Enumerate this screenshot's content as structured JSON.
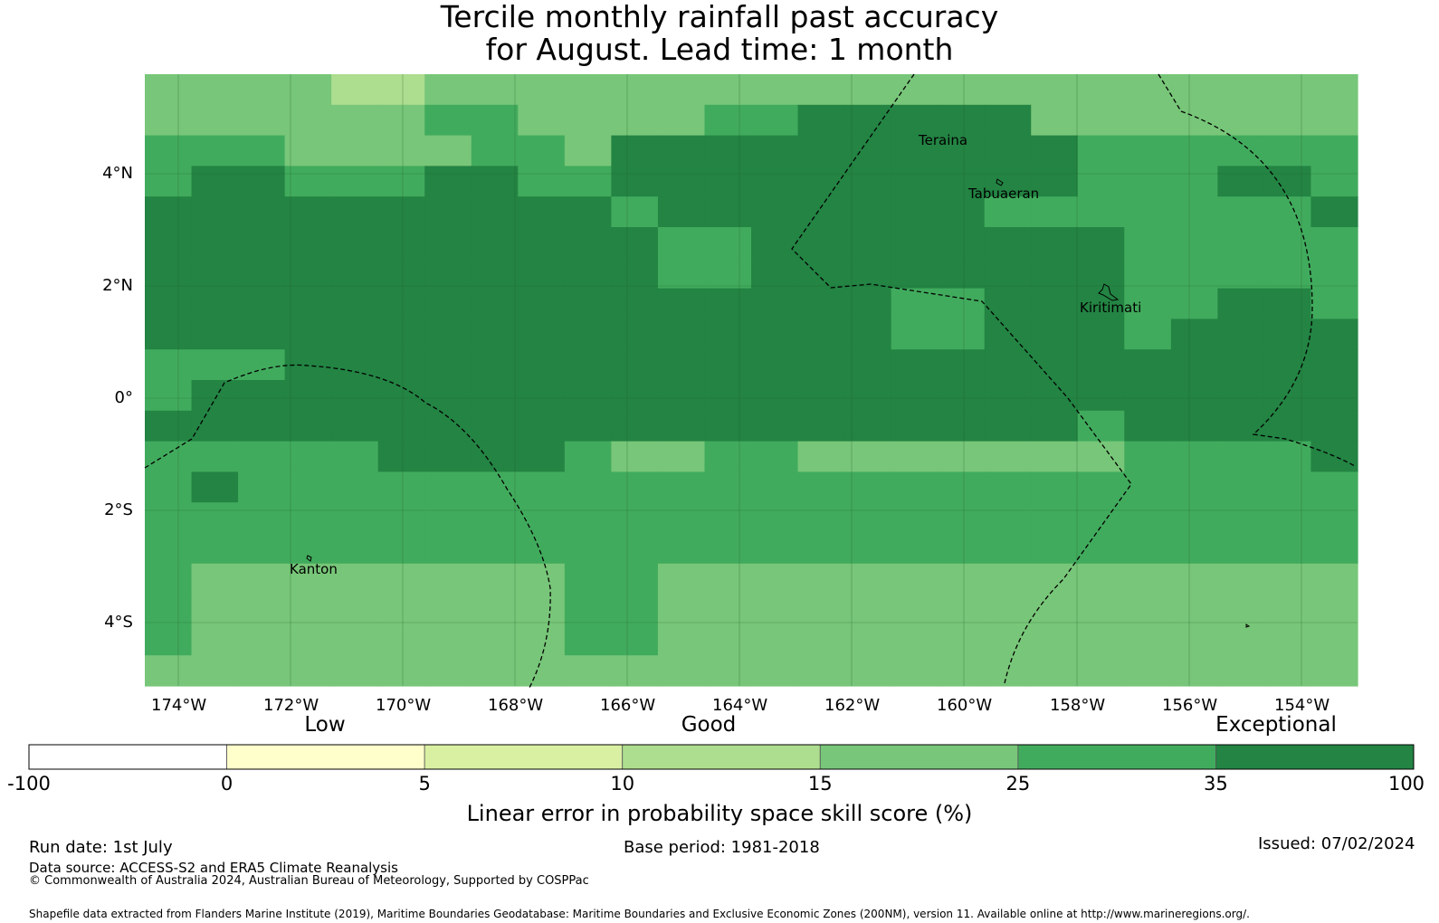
{
  "title_line1": "Tercile monthly rainfall past accuracy",
  "title_line2": "for August. Lead time: 1 month",
  "map": {
    "lon_ticks": [
      "174°W",
      "172°W",
      "170°W",
      "168°W",
      "166°W",
      "164°W",
      "162°W",
      "160°W",
      "158°W",
      "156°W",
      "154°W"
    ],
    "lat_ticks": [
      "4°N",
      "2°N",
      "0°",
      "2°S",
      "4°S"
    ],
    "places": [
      {
        "name": "Teraina"
      },
      {
        "name": "Tabuaeran"
      },
      {
        "name": "Kiritimati"
      },
      {
        "name": "Kanton"
      }
    ],
    "palette": [
      "#ffffff",
      "#ffffcc",
      "#d9f0a3",
      "#addd8e",
      "#78c679",
      "#41ab5d",
      "#238443"
    ],
    "grid": [
      "44443344444444444444444444",
      "44444455444455666664444444",
      "55544445546666666666555555",
      "56655566556666666666555665",
      "66666666665666666655555556",
      "66666666666556666666655555",
      "66666666666556666666655555",
      "66666666666666665566655665",
      "66666666666666665566656666",
      "55566666666666666666666666",
      "56666666666666666666666666",
      "66666666666666666666566666",
      "55555666654455444444455556",
      "56555555555555555555555555",
      "55555555555555555555555555",
      "55555555555555555555555555",
      "54444444455444444444444444",
      "54444444455444444444444444",
      "54444444455444444444444444",
      "44444444444444444444444444"
    ]
  },
  "legend": {
    "tiers": [
      "Low",
      "Good",
      "Exceptional"
    ],
    "ticks": [
      "-100",
      "0",
      "5",
      "10",
      "15",
      "25",
      "35",
      "100"
    ],
    "colors": [
      "#ffffff",
      "#ffffcc",
      "#d9f0a3",
      "#addd8e",
      "#78c679",
      "#41ab5d",
      "#238443"
    ],
    "title": "Linear error in probability space skill score (%)"
  },
  "footer": {
    "run_date": "Run date: 1st July",
    "base_period": "Base period: 1981-2018",
    "issued": "Issued: 07/02/2024",
    "data_source": "Data source: ACCESS-S2 and ERA5 Climate Reanalysis",
    "copyright": "© Commonwealth of Australia 2024, Australian Bureau of Meteorology, Supported by COSPPac",
    "shapefile": "Shapefile data extracted from Flanders Marine Institute (2019), Maritime Boundaries Geodatabase: Maritime Boundaries and Exclusive Economic Zones (200NM), version 11. Available online at http://www.marineregions.org/."
  }
}
